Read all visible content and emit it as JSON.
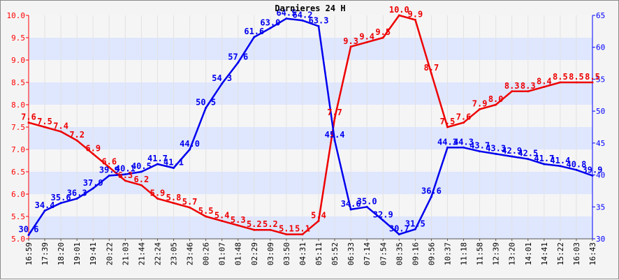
{
  "chart_data": {
    "type": "line",
    "title": "Darnieres 24 H",
    "x": [
      "16:59",
      "17:39",
      "18:20",
      "19:01",
      "19:41",
      "20:22",
      "21:03",
      "21:44",
      "22:24",
      "23:05",
      "23:46",
      "00:26",
      "01:07",
      "01:48",
      "02:29",
      "03:09",
      "03:50",
      "04:31",
      "05:11",
      "05:52",
      "06:33",
      "07:14",
      "07:54",
      "08:35",
      "09:16",
      "09:56",
      "10:37",
      "11:18",
      "11:58",
      "12:39",
      "13:20",
      "14:01",
      "14:41",
      "15:22",
      "16:03",
      "16:43"
    ],
    "y_left": {
      "ylim": [
        5.0,
        10.0
      ],
      "ticks": [
        "5.0",
        "5.5",
        "6.0",
        "6.5",
        "7.0",
        "7.5",
        "8.0",
        "8.5",
        "9.0",
        "9.5",
        "10.0"
      ],
      "color": "#ff0000"
    },
    "y_right": {
      "ylim": [
        30,
        65
      ],
      "ticks": [
        "30",
        "35",
        "40",
        "45",
        "50",
        "55",
        "60",
        "65"
      ],
      "color": "#0000ff"
    },
    "grid": true,
    "series": [
      {
        "axis": "left",
        "color": "#ee0000",
        "values": [
          7.6,
          7.5,
          7.4,
          7.2,
          6.9,
          6.6,
          6.3,
          6.2,
          5.9,
          5.8,
          5.7,
          5.5,
          5.4,
          5.3,
          5.2,
          5.2,
          5.1,
          5.1,
          5.4,
          7.7,
          9.3,
          9.4,
          9.5,
          10.0,
          9.9,
          8.7,
          7.5,
          7.6,
          7.9,
          8.0,
          8.3,
          8.3,
          8.4,
          8.5,
          8.5,
          8.5
        ],
        "labels": [
          "7.6",
          "7.5",
          "7.4",
          "7.2",
          "6.9",
          "6.6",
          "6.3",
          "6.2",
          "5.9",
          "5.8",
          "5.7",
          "5.5",
          "5.4",
          "5.3",
          "5.2",
          "5.2",
          "5.1",
          "5.1",
          "5.4",
          "7.7",
          "9.3",
          "9.4",
          "9.5",
          "10.0",
          "9.9",
          "8.7",
          "7.5",
          "7.6",
          "7.9",
          "8.0",
          "8.3",
          "8.3",
          "8.4",
          "8.5",
          "8.5",
          "8.5"
        ]
      },
      {
        "axis": "right",
        "color": "#0000ee",
        "values": [
          30.6,
          34.4,
          35.6,
          36.3,
          37.9,
          39.9,
          40.1,
          40.5,
          41.7,
          41.1,
          44.0,
          50.5,
          54.3,
          57.6,
          61.6,
          63.0,
          64.5,
          64.2,
          63.3,
          45.4,
          34.6,
          35.0,
          32.9,
          30.7,
          31.5,
          36.6,
          44.3,
          44.3,
          43.7,
          43.3,
          42.9,
          42.5,
          41.7,
          41.4,
          40.8,
          39.9
        ],
        "labels": [
          "30.6",
          "34.4",
          "35.6",
          "36.3",
          "37.9",
          "39.9",
          "40.1",
          "40.5",
          "41.7",
          "41.1",
          "44.0",
          "50.5",
          "54.3",
          "57.6",
          "61.6",
          "63.0",
          "64.5",
          "64.2",
          "63.3",
          "45.4",
          "34.6",
          "35.0",
          "32.9",
          "30.7",
          "31.5",
          "36.6",
          "44.3",
          "44.3",
          "43.7",
          "43.3",
          "42.9",
          "42.5",
          "41.7",
          "41.4",
          "40.8",
          "39.9"
        ]
      }
    ]
  }
}
